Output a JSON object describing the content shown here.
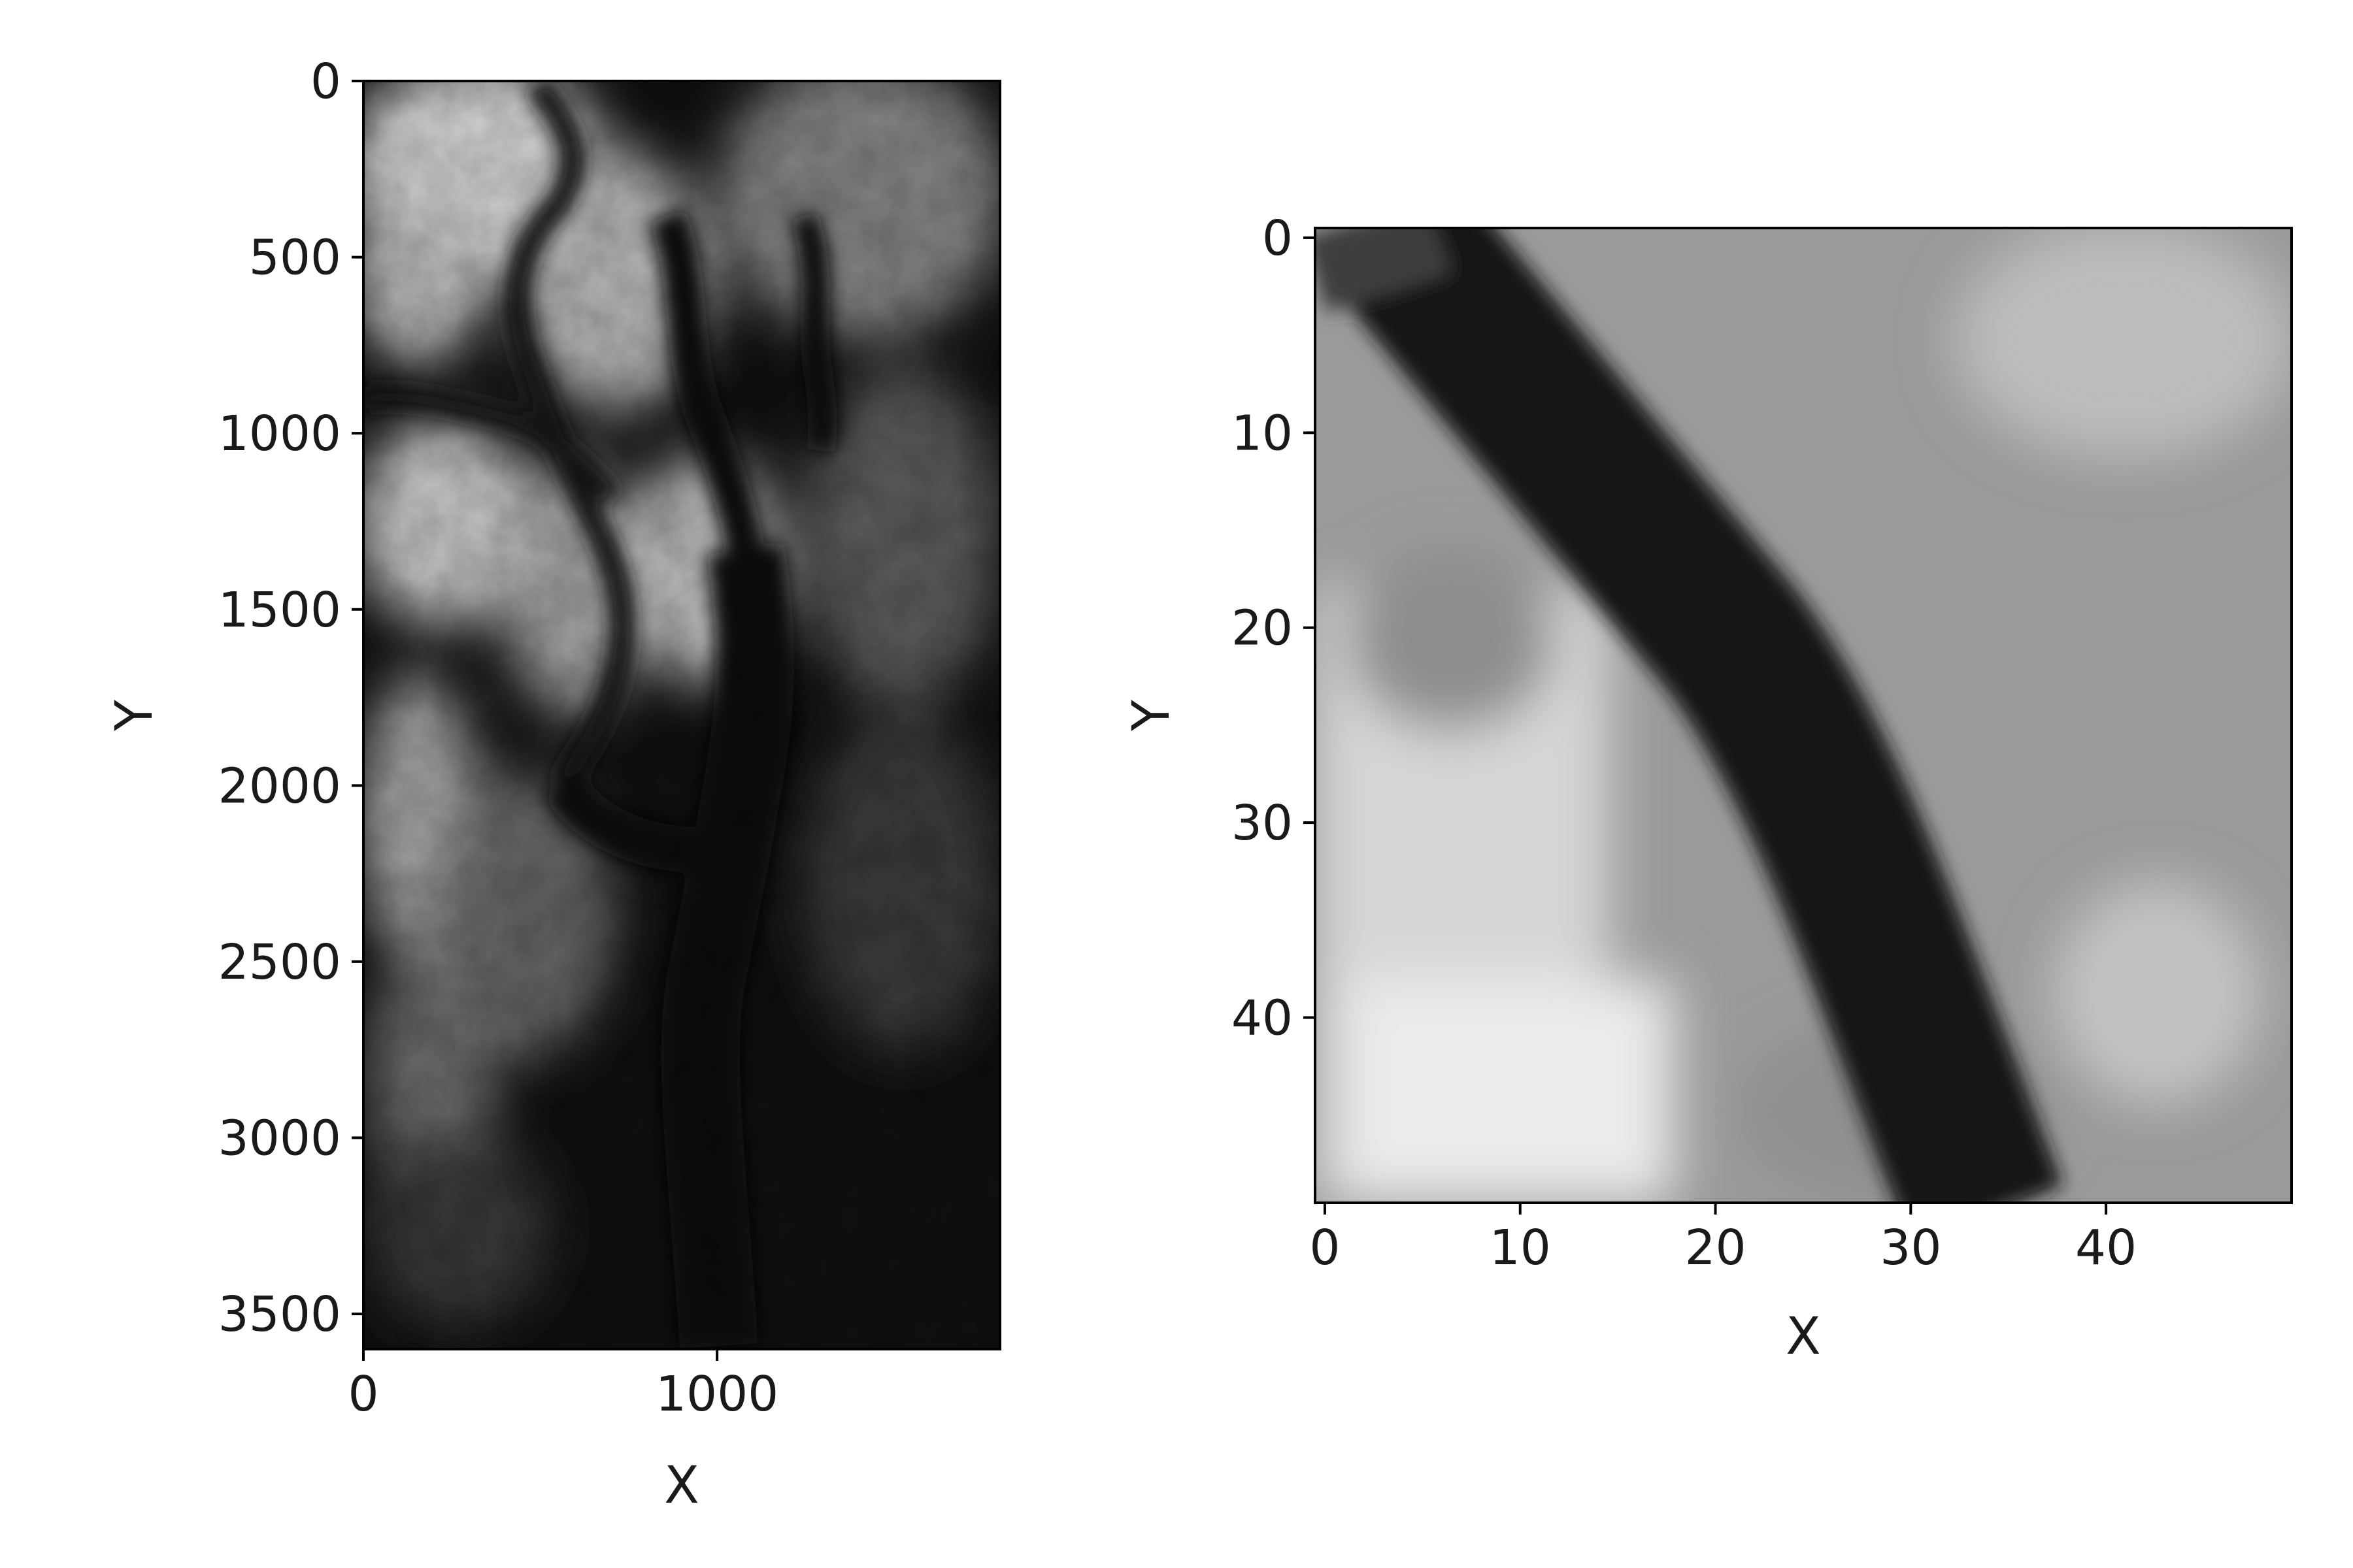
{
  "chart_data": [
    {
      "type": "heatmap",
      "colormap": "gray",
      "description_of_values": "elevation raster",
      "xlabel": "X",
      "ylabel": "Y",
      "xlim": [
        0,
        1800
      ],
      "ylim": [
        3600,
        0
      ],
      "xticks": [
        0,
        1000
      ],
      "xtick_labels": [
        "0",
        "1000"
      ],
      "yticks": [
        0,
        500,
        1000,
        1500,
        2000,
        2500,
        3000,
        3500
      ],
      "ytick_labels": [
        "0",
        "500",
        "1000",
        "1500",
        "2000",
        "2500",
        "3000",
        "3500"
      ],
      "grid": false,
      "image_shape": [
        3600,
        1800
      ]
    },
    {
      "type": "heatmap",
      "colormap": "gray",
      "xlabel": "X",
      "ylabel": "Y",
      "xlim": [
        -0.5,
        49.5
      ],
      "ylim": [
        49.5,
        -0.5
      ],
      "xticks": [
        0,
        10,
        20,
        30,
        40
      ],
      "xtick_labels": [
        "0",
        "10",
        "20",
        "30",
        "40"
      ],
      "yticks": [
        0,
        10,
        20,
        30,
        40
      ],
      "ytick_labels": [
        "0",
        "10",
        "20",
        "30",
        "40"
      ],
      "grid": false,
      "image_shape": [
        50,
        50
      ]
    }
  ]
}
